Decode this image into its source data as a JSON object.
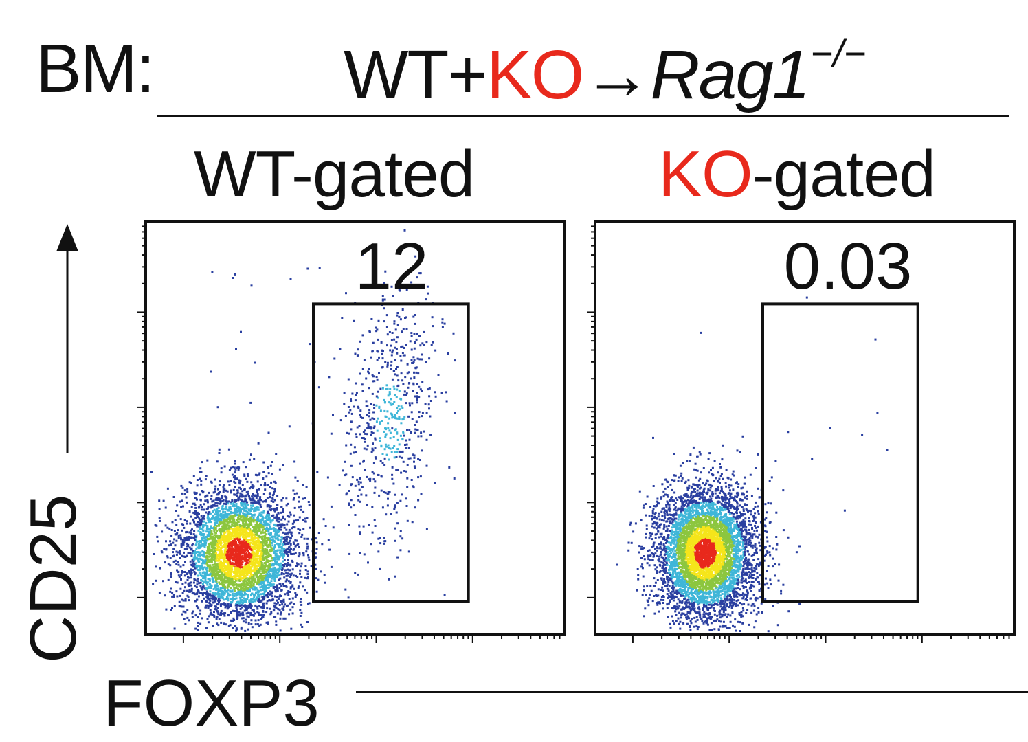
{
  "header": {
    "bm_label": "BM:",
    "prefix": "WT+",
    "ko": "KO",
    "arrow": "→",
    "host": "Rag1",
    "host_sup": "−/−"
  },
  "gate_titles": {
    "wt_prefix": "WT",
    "wt_suffix": "-gated",
    "ko_prefix": "KO",
    "ko_suffix": "-gated"
  },
  "axes": {
    "ylabel": "CD25",
    "xlabel": "FOXP3"
  },
  "colors": {
    "accent_red": "#e8291c",
    "density_low": "#2a3fa0",
    "density_mid": "#3fb6d8",
    "density_midhigh": "#8cc63f",
    "density_high": "#f5e51b",
    "density_peak": "#e8291c"
  },
  "chart_data": [
    {
      "type": "scatter",
      "subtype": "flow-cytometry density dot plot",
      "title": "WT-gated",
      "xlabel": "FOXP3",
      "ylabel": "CD25",
      "scale": "log",
      "gate": {
        "label": "12",
        "value_percent": 12,
        "x_range": [
          0.4,
          0.77
        ],
        "y_range": [
          0.08,
          0.8
        ]
      },
      "populations": [
        {
          "name": "",
          "center": [
            0.22,
            0.2
          ],
          "spread": [
            0.07,
            0.08
          ],
          "fraction": 0.88
        },
        {
          "name": "",
          "center": [
            0.58,
            0.52
          ],
          "spread": [
            0.06,
            0.16
          ],
          "fraction": 0.12
        }
      ]
    },
    {
      "type": "scatter",
      "subtype": "flow-cytometry density dot plot",
      "title": "KO-gated",
      "xlabel": "FOXP3",
      "ylabel": "CD25",
      "scale": "log",
      "gate": {
        "label": "0.03",
        "value_percent": 0.03,
        "x_range": [
          0.4,
          0.77
        ],
        "y_range": [
          0.08,
          0.8
        ]
      },
      "populations": [
        {
          "name": "",
          "center": [
            0.26,
            0.2
          ],
          "spread": [
            0.06,
            0.08
          ],
          "fraction": 0.9997
        }
      ]
    }
  ]
}
